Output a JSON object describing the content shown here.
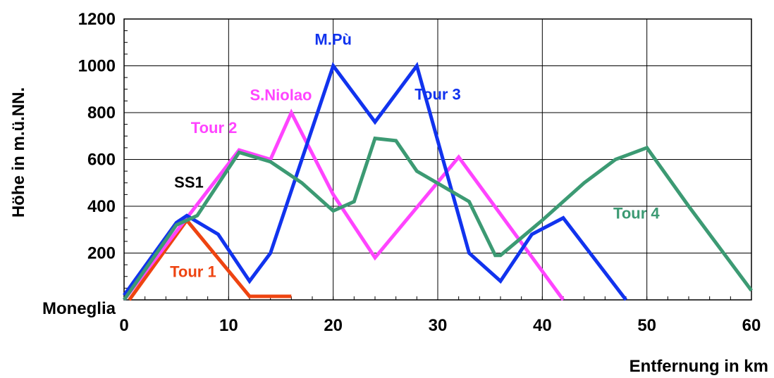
{
  "chart_data": {
    "type": "line",
    "title": "",
    "xlabel": "Entfernung in km",
    "ylabel": "Höhe in m.ü.NN.",
    "xlim": [
      0,
      60
    ],
    "ylim": [
      0,
      1200
    ],
    "x_ticks": [
      0,
      10,
      20,
      30,
      40,
      50,
      60
    ],
    "x_tick_labels": [
      "0",
      "10",
      "20",
      "30",
      "40",
      "50",
      "60"
    ],
    "y_ticks": [
      200,
      400,
      600,
      800,
      1000,
      1200
    ],
    "y_tick_labels": [
      "200",
      "400",
      "600",
      "800",
      "1000",
      "1200"
    ],
    "y_origin_label": "Moneglia",
    "grid": true,
    "series": [
      {
        "name": "Tour 1",
        "color": "#ee4411",
        "points": [
          [
            0.5,
            0
          ],
          [
            6,
            340
          ],
          [
            12,
            15
          ],
          [
            16,
            15
          ]
        ]
      },
      {
        "name": "Tour 2",
        "color": "#ff44ff",
        "points": [
          [
            0,
            0
          ],
          [
            6,
            350
          ],
          [
            11,
            640
          ],
          [
            14,
            600
          ],
          [
            16,
            800
          ],
          [
            20,
            450
          ],
          [
            24,
            180
          ],
          [
            32,
            610
          ],
          [
            42,
            0
          ]
        ]
      },
      {
        "name": "Tour 3",
        "color": "#1133ee",
        "points": [
          [
            0,
            20
          ],
          [
            5,
            330
          ],
          [
            6,
            360
          ],
          [
            9,
            280
          ],
          [
            12,
            80
          ],
          [
            14,
            200
          ],
          [
            20,
            1000
          ],
          [
            24,
            760
          ],
          [
            28,
            1000
          ],
          [
            33,
            200
          ],
          [
            36,
            80
          ],
          [
            39,
            280
          ],
          [
            42,
            350
          ],
          [
            48,
            0
          ]
        ]
      },
      {
        "name": "Tour 4",
        "color": "#3c9a73",
        "points": [
          [
            0,
            0
          ],
          [
            5,
            320
          ],
          [
            7,
            360
          ],
          [
            11,
            630
          ],
          [
            14,
            590
          ],
          [
            17,
            500
          ],
          [
            20,
            380
          ],
          [
            22,
            420
          ],
          [
            24,
            690
          ],
          [
            26,
            680
          ],
          [
            28,
            550
          ],
          [
            33,
            420
          ],
          [
            35.5,
            190
          ],
          [
            36,
            190
          ],
          [
            40,
            340
          ],
          [
            44,
            500
          ],
          [
            47,
            600
          ],
          [
            50,
            650
          ],
          [
            54,
            400
          ],
          [
            60,
            40
          ]
        ]
      }
    ],
    "annotations": [
      {
        "text": "M.Pù",
        "x": 20.0,
        "y": 1090,
        "color": "#1133ee"
      },
      {
        "text": "S.Niolao",
        "x": 15.0,
        "y": 853,
        "color": "#ff44ff"
      },
      {
        "text": "Tour 3",
        "x": 30.0,
        "y": 855,
        "color": "#1133ee"
      },
      {
        "text": "Tour 2",
        "x": 8.6,
        "y": 713,
        "color": "#ff44ff"
      },
      {
        "text": "SS1",
        "x": 6.2,
        "y": 480,
        "color": "#000000"
      },
      {
        "text": "Tour 4",
        "x": 49.0,
        "y": 348,
        "color": "#3c9a73"
      },
      {
        "text": "Tour 1",
        "x": 6.6,
        "y": 97,
        "color": "#ee4411"
      }
    ]
  }
}
